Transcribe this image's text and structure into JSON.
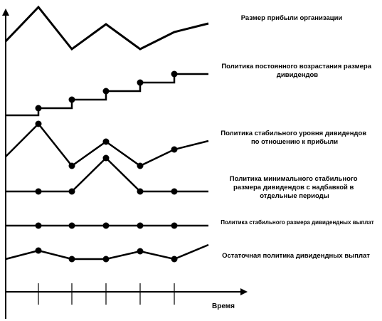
{
  "axis": {
    "x_label": "Время"
  },
  "policies": [
    {
      "id": "profit",
      "label_lines": [
        "Размер прибыли организации"
      ]
    },
    {
      "id": "constant-growth",
      "label_lines": [
        "Политика постоянного возрастания размера",
        "дивидендов"
      ]
    },
    {
      "id": "stable-ratio",
      "label_lines": [
        "Политика стабильного уровня дивидендов",
        "по отношению к прибыли"
      ]
    },
    {
      "id": "min-stable-bonus",
      "label_lines": [
        "Политика минимального стабильного",
        "размера дивидендов с надбавкой в",
        "отдельные периоды"
      ]
    },
    {
      "id": "stable-size",
      "label_lines": [
        "Политика стабильного размера дивидендных выплат"
      ]
    },
    {
      "id": "residual",
      "label_lines": [
        "Остаточная политика дивидендных выплат"
      ]
    }
  ]
}
